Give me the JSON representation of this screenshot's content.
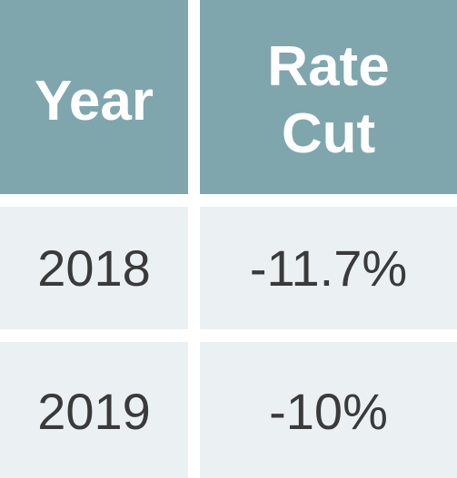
{
  "table": {
    "headers": {
      "year": "Year",
      "rate_cut_line1": "Rate",
      "rate_cut_line2": "Cut"
    },
    "rows": [
      {
        "year": "2018",
        "rate_cut": "-11.7%"
      },
      {
        "year": "2019",
        "rate_cut": "-10%"
      }
    ]
  },
  "colors": {
    "header_background": "#7fa6ad",
    "header_text": "#ffffff",
    "body_background": "#ebf0f2",
    "body_text": "#3a3a3a"
  }
}
